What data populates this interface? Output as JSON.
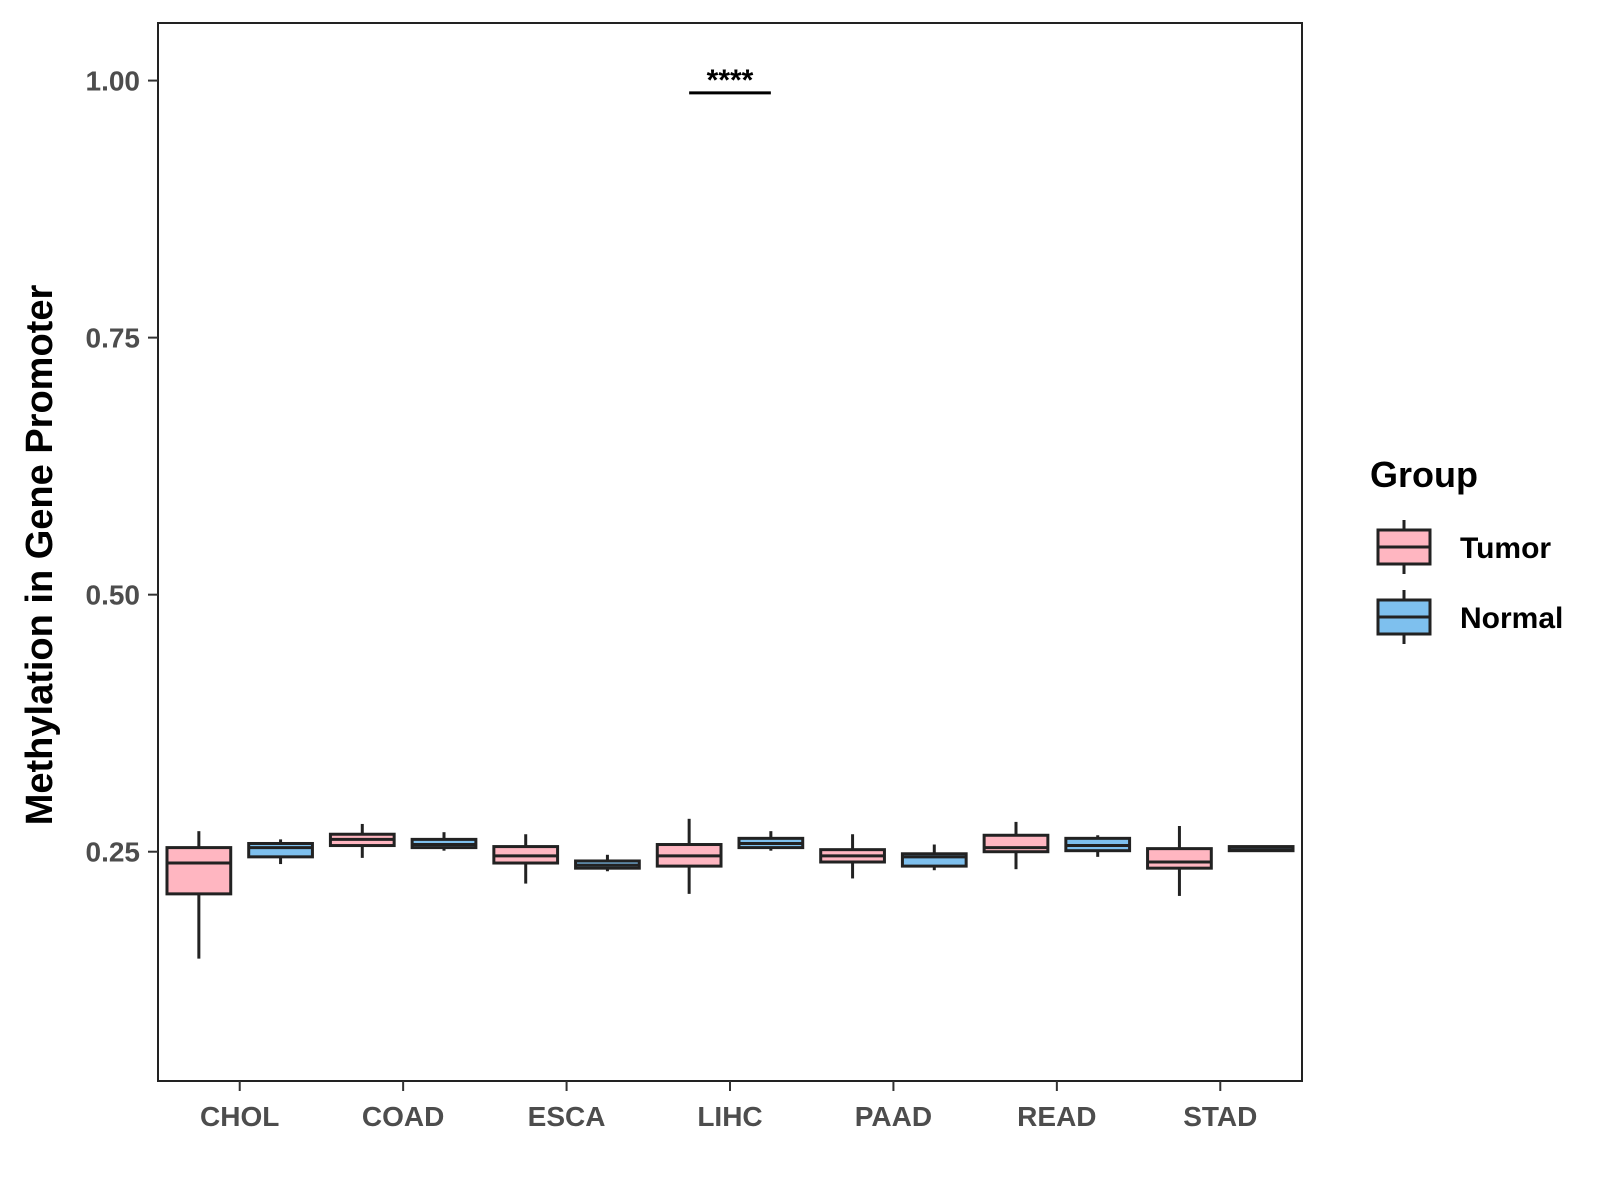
{
  "chart_data": {
    "type": "boxplot",
    "title": "",
    "xlabel": "",
    "ylabel": "Methylation in Gene Promoter",
    "ylim": [
      0.027,
      1.056
    ],
    "yticks": [
      0.25,
      0.5,
      0.75,
      1.0
    ],
    "ytick_labels": [
      "0.25",
      "0.50",
      "0.75",
      "1.00"
    ],
    "categories": [
      "CHOL",
      "COAD",
      "ESCA",
      "LIHC",
      "PAAD",
      "READ",
      "STAD"
    ],
    "legend": {
      "title": "Group",
      "position": "right",
      "items": [
        {
          "name": "Tumor",
          "color": "#FFB6C1"
        },
        {
          "name": "Normal",
          "color": "#7EC0EE"
        }
      ]
    },
    "series": [
      {
        "name": "Tumor",
        "color": "#FFB6C1",
        "boxes": [
          {
            "whisker_low": 0.146,
            "q1": 0.209,
            "median": 0.239,
            "q3": 0.254,
            "whisker_high": 0.27
          },
          {
            "whisker_low": 0.244,
            "q1": 0.256,
            "median": 0.262,
            "q3": 0.267,
            "whisker_high": 0.277
          },
          {
            "whisker_low": 0.219,
            "q1": 0.239,
            "median": 0.246,
            "q3": 0.255,
            "whisker_high": 0.267
          },
          {
            "whisker_low": 0.209,
            "q1": 0.236,
            "median": 0.246,
            "q3": 0.257,
            "whisker_high": 0.282
          },
          {
            "whisker_low": 0.224,
            "q1": 0.24,
            "median": 0.246,
            "q3": 0.252,
            "whisker_high": 0.267
          },
          {
            "whisker_low": 0.233,
            "q1": 0.25,
            "median": 0.254,
            "q3": 0.266,
            "whisker_high": 0.279
          },
          {
            "whisker_low": 0.207,
            "q1": 0.234,
            "median": 0.24,
            "q3": 0.253,
            "whisker_high": 0.275
          }
        ]
      },
      {
        "name": "Normal",
        "color": "#7EC0EE",
        "boxes": [
          {
            "whisker_low": 0.238,
            "q1": 0.245,
            "median": 0.254,
            "q3": 0.258,
            "whisker_high": 0.262
          },
          {
            "whisker_low": 0.251,
            "q1": 0.254,
            "median": 0.257,
            "q3": 0.262,
            "whisker_high": 0.269
          },
          {
            "whisker_low": 0.231,
            "q1": 0.234,
            "median": 0.237,
            "q3": 0.241,
            "whisker_high": 0.247
          },
          {
            "whisker_low": 0.251,
            "q1": 0.254,
            "median": 0.258,
            "q3": 0.263,
            "whisker_high": 0.27
          },
          {
            "whisker_low": 0.232,
            "q1": 0.236,
            "median": 0.245,
            "q3": 0.248,
            "whisker_high": 0.257
          },
          {
            "whisker_low": 0.245,
            "q1": 0.251,
            "median": 0.256,
            "q3": 0.263,
            "whisker_high": 0.266
          },
          {
            "whisker_low": 0.25,
            "q1": 0.251,
            "median": 0.252,
            "q3": 0.255,
            "whisker_high": 0.256
          }
        ]
      }
    ],
    "annotations": [
      {
        "category": "LIHC",
        "label": "****",
        "y": 0.988
      }
    ]
  }
}
